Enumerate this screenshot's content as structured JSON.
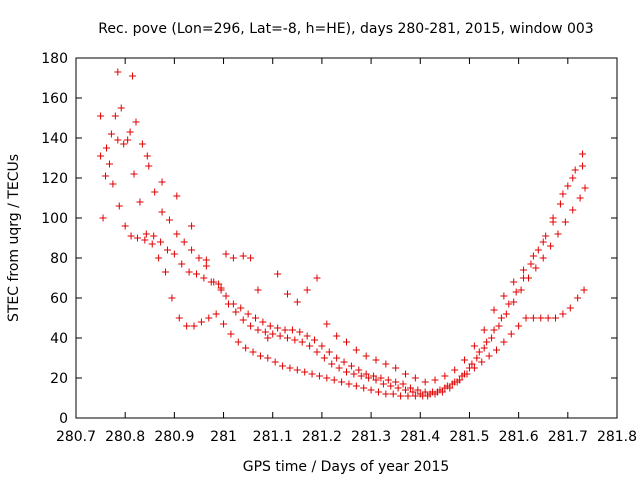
{
  "chart_data": {
    "type": "scatter",
    "title": "Rec. pove (Lon=296, Lat=-8, h=HE), days 280-281, 2015, window 003",
    "xlabel": "GPS time / Days of year 2015",
    "ylabel": "STEC from uqrg / TECUs",
    "xlim": [
      280.7,
      281.8
    ],
    "ylim": [
      0,
      180
    ],
    "xticks": [
      280.7,
      280.8,
      280.9,
      281,
      281.1,
      281.2,
      281.3,
      281.4,
      281.5,
      281.6,
      281.7,
      281.8
    ],
    "xtick_labels": [
      "280.7",
      "280.8",
      "280.9",
      "281",
      "281.1",
      "281.2",
      "281.3",
      "281.4",
      "281.5",
      "281.6",
      "281.7",
      "281.8"
    ],
    "yticks": [
      0,
      20,
      40,
      60,
      80,
      100,
      120,
      140,
      160,
      180
    ],
    "ytick_labels": [
      "0",
      "20",
      "40",
      "60",
      "80",
      "100",
      "120",
      "140",
      "160",
      "180"
    ],
    "marker_color": "#e00000",
    "grid": false,
    "series": [
      {
        "x": [
          280.75,
          280.762,
          280.775,
          280.788,
          280.8,
          280.812,
          280.825,
          280.84,
          280.855,
          280.868,
          280.882,
          280.895,
          280.91,
          280.925,
          280.94,
          280.955,
          280.97,
          280.985,
          281.0,
          281.015,
          281.03,
          281.045,
          281.06,
          281.075,
          281.09,
          281.105,
          281.12,
          281.135,
          281.15,
          281.165,
          281.18,
          281.195,
          281.21,
          281.225,
          281.24,
          281.255,
          281.27,
          281.285,
          281.3,
          281.315,
          281.33,
          281.345,
          281.36,
          281.375,
          281.39,
          281.405,
          281.42,
          281.435,
          281.45,
          281.465,
          281.48,
          281.495,
          281.51,
          281.525,
          281.54,
          281.555,
          281.57,
          281.585,
          281.6,
          281.615,
          281.63,
          281.645,
          281.66,
          281.675,
          281.69,
          281.705,
          281.72,
          281.733
        ],
        "y": [
          151,
          135,
          117,
          106,
          96,
          91,
          90,
          89,
          87,
          80,
          73,
          60,
          50,
          46,
          46,
          48,
          50,
          52,
          47,
          42,
          38,
          35,
          33,
          31,
          30,
          28,
          26,
          25,
          24,
          23,
          22,
          21,
          20,
          19,
          18,
          17,
          16,
          15,
          14,
          13,
          12,
          12,
          11,
          11,
          11,
          11,
          12,
          13,
          15,
          17,
          19,
          22,
          25,
          28,
          31,
          34,
          38,
          42,
          46,
          50,
          50,
          50,
          50,
          50,
          52,
          55,
          60,
          64
        ]
      },
      {
        "x": [
          280.75,
          280.76,
          280.772,
          280.785,
          280.797,
          280.81,
          280.822,
          280.835,
          280.848,
          280.86,
          280.875,
          280.89,
          280.905,
          280.92,
          280.935,
          280.95,
          280.965,
          280.98,
          280.995,
          281.01,
          281.025,
          281.04,
          281.055,
          281.07,
          281.085,
          281.1,
          281.115,
          281.13,
          281.145,
          281.16,
          281.175,
          281.19,
          281.205,
          281.22,
          281.235,
          281.25,
          281.265,
          281.28,
          281.295,
          281.31,
          281.325,
          281.34,
          281.355,
          281.37,
          281.385,
          281.4,
          281.415,
          281.43,
          281.445,
          281.46,
          281.475,
          281.49,
          281.505,
          281.52,
          281.535,
          281.55,
          281.565,
          281.58,
          281.595,
          281.61,
          281.625,
          281.64,
          281.655,
          281.67,
          281.685,
          281.7,
          281.715,
          281.73
        ],
        "y": [
          131,
          121,
          142,
          139,
          137,
          143,
          148,
          137,
          126,
          113,
          103,
          99,
          92,
          88,
          84,
          80,
          76,
          68,
          64,
          57,
          53,
          49,
          46,
          44,
          43,
          42,
          41,
          40,
          39,
          38,
          36,
          33,
          30,
          27,
          25,
          23,
          22,
          21,
          20,
          19,
          17,
          16,
          15,
          14,
          13,
          12,
          11,
          12,
          13,
          15,
          18,
          22,
          27,
          33,
          38,
          44,
          50,
          57,
          63,
          70,
          77,
          84,
          91,
          98,
          107,
          116,
          124,
          132
        ]
      },
      {
        "x": [
          280.755,
          280.768,
          280.78,
          280.792,
          280.805,
          280.818,
          280.83,
          280.843,
          280.858,
          280.872,
          280.886,
          280.9,
          280.915,
          280.93,
          280.945,
          280.96,
          280.975,
          280.99,
          281.005,
          281.02,
          281.035,
          281.05,
          281.065,
          281.08,
          281.095,
          281.11,
          281.125,
          281.14,
          281.155,
          281.17,
          281.185,
          281.2,
          281.215,
          281.23,
          281.245,
          281.26,
          281.275,
          281.29,
          281.305,
          281.32,
          281.335,
          281.35,
          281.365,
          281.38,
          281.395,
          281.41,
          281.425,
          281.44,
          281.455,
          281.47,
          281.485,
          281.5,
          281.515,
          281.53,
          281.545,
          281.56,
          281.575,
          281.59,
          281.605,
          281.62,
          281.635,
          281.65,
          281.665,
          281.68,
          281.695,
          281.71,
          281.725,
          281.735
        ],
        "y": [
          100,
          127,
          151,
          155,
          139,
          122,
          108,
          92,
          91,
          88,
          84,
          82,
          77,
          73,
          72,
          70,
          68,
          67,
          61,
          57,
          55,
          52,
          50,
          48,
          46,
          45,
          44,
          44,
          43,
          41,
          39,
          36,
          33,
          30,
          28,
          26,
          24,
          22,
          21,
          20,
          19,
          18,
          17,
          15,
          14,
          13,
          13,
          14,
          16,
          18,
          21,
          25,
          30,
          35,
          40,
          46,
          52,
          58,
          64,
          70,
          75,
          80,
          86,
          92,
          98,
          104,
          110,
          115
        ]
      },
      {
        "x": [
          280.785,
          280.815,
          280.845,
          280.875,
          280.905,
          280.935,
          280.965,
          280.995,
          281.005,
          281.02,
          281.04,
          281.055,
          281.07,
          281.09,
          281.11,
          281.13,
          281.15,
          281.17,
          281.19,
          281.21,
          281.23,
          281.25,
          281.27,
          281.29,
          281.31,
          281.33,
          281.35,
          281.37,
          281.39,
          281.41,
          281.43,
          281.45,
          281.47,
          281.49,
          281.51,
          281.53,
          281.55,
          281.57,
          281.59,
          281.61,
          281.63,
          281.65,
          281.67,
          281.69,
          281.71,
          281.73
        ],
        "y": [
          173,
          171,
          131,
          118,
          111,
          96,
          79,
          65,
          82,
          80,
          81,
          80,
          64,
          40,
          72,
          62,
          58,
          64,
          70,
          47,
          41,
          38,
          34,
          31,
          29,
          27,
          25,
          22,
          20,
          18,
          19,
          21,
          24,
          29,
          36,
          44,
          54,
          61,
          68,
          74,
          81,
          88,
          100,
          112,
          120,
          126
        ]
      }
    ]
  }
}
